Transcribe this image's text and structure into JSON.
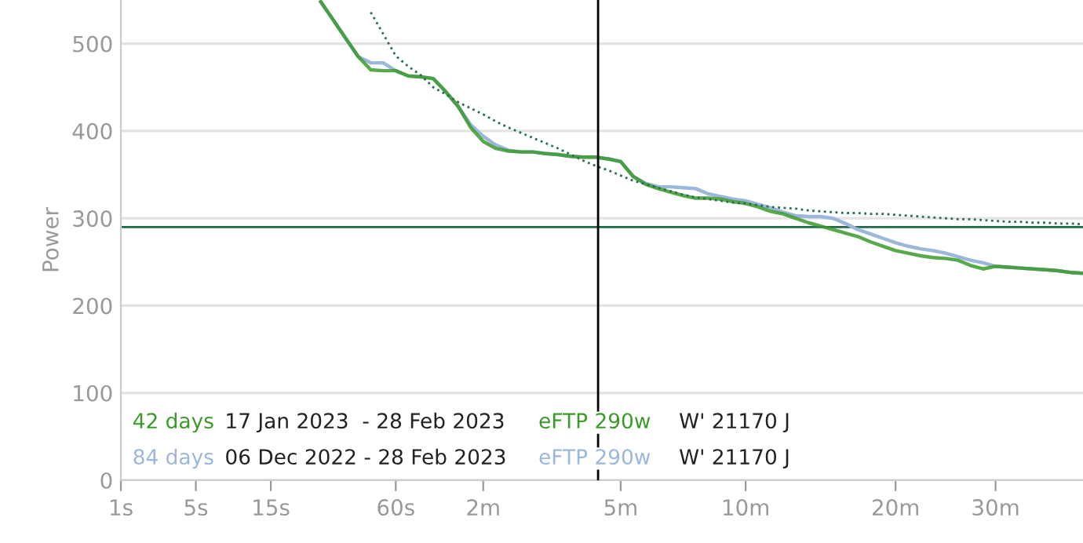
{
  "chart_data": {
    "type": "line",
    "ylabel": "Power",
    "ylim": [
      0,
      550
    ],
    "categories": [
      "1s",
      null,
      null,
      null,
      null,
      null,
      "5s",
      null,
      null,
      null,
      null,
      null,
      "15s",
      null,
      null,
      null,
      null,
      null,
      null,
      null,
      null,
      null,
      "60s",
      null,
      null,
      null,
      null,
      null,
      null,
      "2m",
      null,
      null,
      null,
      null,
      null,
      null,
      null,
      null,
      null,
      null,
      "5m",
      null,
      null,
      null,
      null,
      null,
      null,
      null,
      null,
      null,
      "10m",
      null,
      null,
      null,
      null,
      null,
      null,
      null,
      null,
      null,
      null,
      null,
      "20m",
      null,
      null,
      null,
      null,
      null,
      null,
      null,
      "30m",
      null,
      null,
      null,
      null,
      null,
      null,
      null
    ],
    "yticks": [
      0,
      100,
      200,
      300,
      400,
      500
    ],
    "grid": "y",
    "legend": "bottom left",
    "series": [
      {
        "name": "84 days",
        "color": "#9bb7dc",
        "values": [
          null,
          null,
          null,
          null,
          null,
          null,
          null,
          null,
          null,
          null,
          null,
          null,
          null,
          null,
          null,
          null,
          548,
          527,
          506,
          485,
          478,
          478,
          469,
          463,
          462,
          460,
          445,
          428,
          407,
          394,
          384,
          378,
          376,
          376,
          374,
          373,
          371,
          370,
          370,
          368,
          365,
          348,
          340,
          336,
          336,
          335,
          334,
          328,
          325,
          322,
          320,
          316,
          312,
          307,
          303,
          302,
          302,
          300,
          294,
          287,
          282,
          277,
          272,
          268,
          265,
          263,
          260,
          256,
          252,
          249,
          245,
          244,
          243,
          242,
          241,
          240,
          238,
          237
        ]
      },
      {
        "name": "42 days",
        "color": "#3a9a2a",
        "values": [
          null,
          null,
          null,
          null,
          null,
          null,
          null,
          null,
          null,
          null,
          null,
          null,
          null,
          null,
          null,
          null,
          548,
          527,
          506,
          485,
          470,
          469,
          469,
          463,
          462,
          460,
          445,
          428,
          404,
          388,
          380,
          377,
          376,
          376,
          374,
          373,
          371,
          370,
          370,
          368,
          365,
          348,
          339,
          334,
          330,
          326,
          323,
          323,
          322,
          319,
          317,
          313,
          308,
          305,
          300,
          295,
          291,
          287,
          283,
          279,
          273,
          268,
          263,
          260,
          257,
          255,
          254,
          252,
          246,
          242,
          245,
          244,
          243,
          242,
          241,
          240,
          238,
          237
        ]
      },
      {
        "color": "#2b6e4f",
        "line_style": "dotted",
        "values": [
          null,
          null,
          null,
          null,
          null,
          null,
          null,
          null,
          null,
          null,
          null,
          null,
          null,
          null,
          null,
          null,
          null,
          null,
          null,
          null,
          536,
          511,
          486,
          474,
          464,
          450,
          442,
          433,
          426,
          419,
          411,
          404,
          398,
          392,
          386,
          380,
          373,
          366,
          360,
          355,
          349,
          343,
          339,
          335,
          331,
          327,
          324,
          322,
          320,
          318,
          317,
          315,
          313,
          312,
          311,
          309,
          308,
          307,
          306,
          306,
          305,
          305,
          304,
          303,
          302,
          301,
          300,
          299,
          299,
          298,
          297,
          296,
          296,
          295,
          295,
          294,
          294,
          293
        ]
      }
    ],
    "ref_lines": [
      {
        "axis": "y",
        "value": 290,
        "color": "#1e6b4a"
      }
    ],
    "annotations": [
      "17 Jan 2023  - 28 Feb 2023",
      "eFTP 290w",
      "W' 21170 J",
      "06 Dec 2022 - 28 Feb 2023",
      "eFTP 290w",
      "W' 21170 J"
    ]
  }
}
